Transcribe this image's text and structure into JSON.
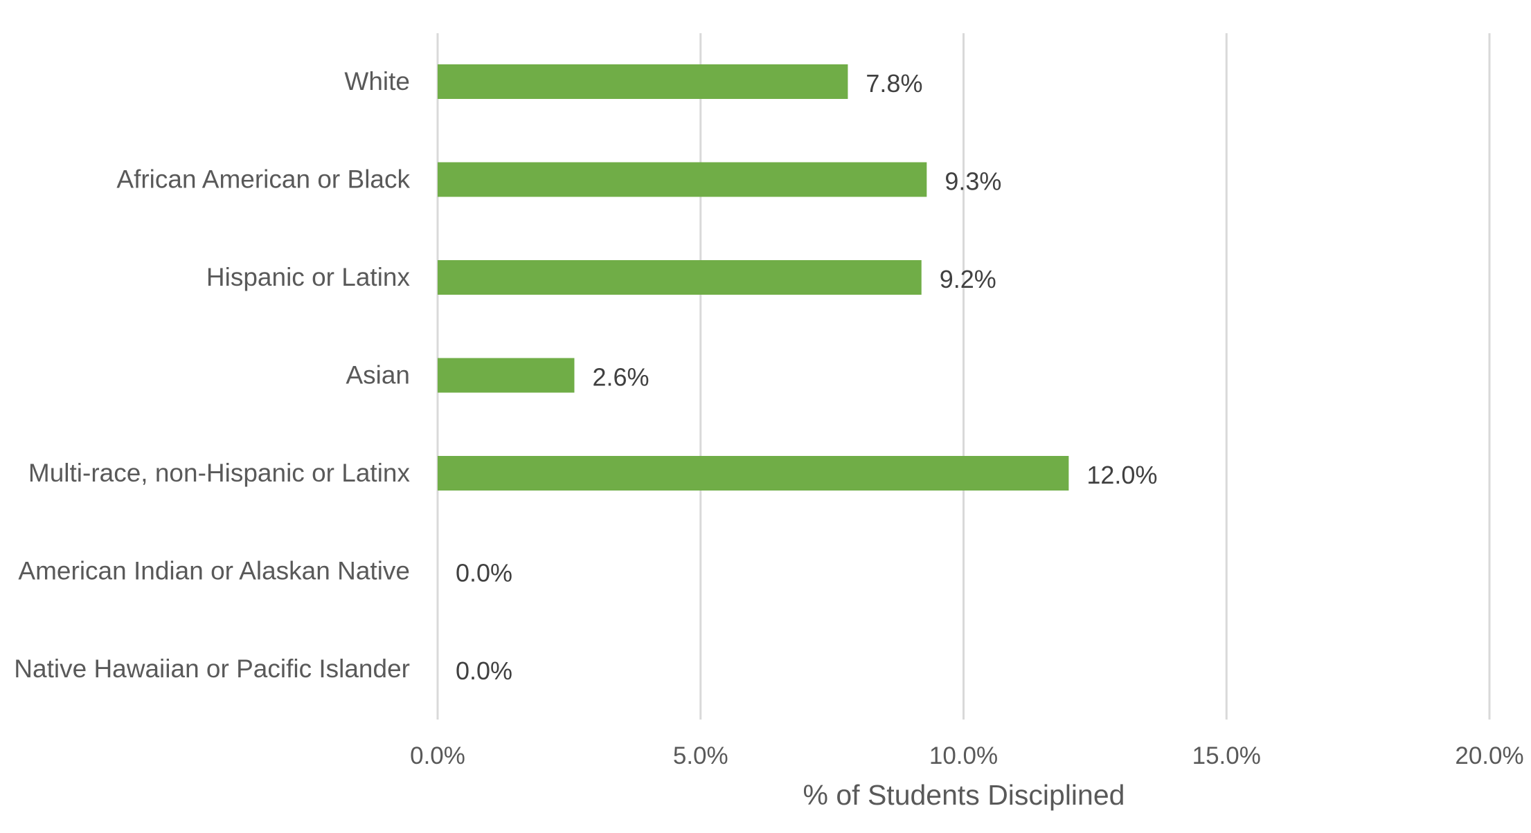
{
  "chart_data": {
    "type": "bar",
    "orientation": "horizontal",
    "categories": [
      "White",
      "African American or Black",
      "Hispanic or Latinx",
      "Asian",
      "Multi-race, non-Hispanic or Latinx",
      "American Indian or Alaskan Native",
      "Native Hawaiian or Pacific Islander"
    ],
    "values": [
      7.8,
      9.3,
      9.2,
      2.6,
      12.0,
      0.0,
      0.0
    ],
    "data_labels": [
      "7.8%",
      "9.3%",
      "9.2%",
      "2.6%",
      "12.0%",
      "0.0%",
      "0.0%"
    ],
    "title": "",
    "xlabel": "% of Students Disciplined",
    "ylabel": "",
    "xlim": [
      0,
      20
    ],
    "x_ticks": [
      0,
      5,
      10,
      15,
      20
    ],
    "x_tick_labels": [
      "0.0%",
      "5.0%",
      "10.0%",
      "15.0%",
      "20.0%"
    ],
    "grid": "vertical",
    "legend": "none",
    "bar_color": "#70ad47"
  }
}
